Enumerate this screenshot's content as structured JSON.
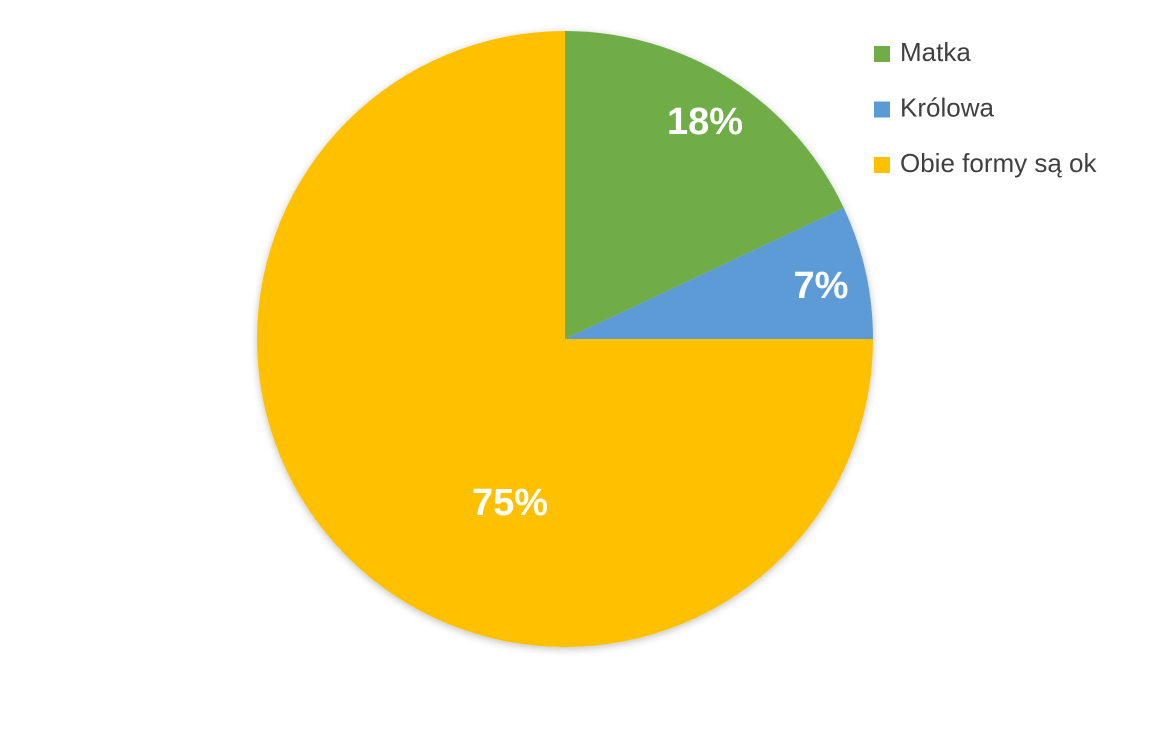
{
  "chart_data": {
    "type": "pie",
    "categories": [
      "Matka",
      "Królowa",
      "Obie formy są ok"
    ],
    "values": [
      18,
      7,
      75
    ],
    "value_labels": [
      "18%",
      "7%",
      "75%"
    ],
    "colors": [
      "#70ad47",
      "#5b9bd5",
      "#ffc000"
    ],
    "legend": "top-right"
  }
}
